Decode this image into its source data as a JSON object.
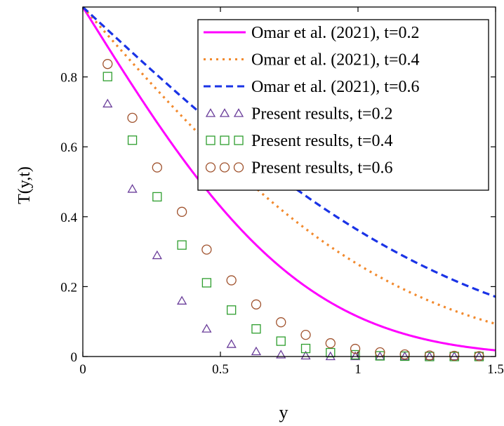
{
  "chart_data": {
    "type": "line",
    "xlabel": "y",
    "ylabel": "T(y,t)",
    "xlim": [
      0,
      1.5
    ],
    "ylim": [
      0,
      1
    ],
    "xticks": [
      0,
      0.5,
      1,
      1.5
    ],
    "xtick_labels": [
      "0",
      "0.5",
      "1",
      "1.5"
    ],
    "yticks": [
      0,
      0.2,
      0.4,
      0.6,
      0.8
    ],
    "ytick_labels": [
      "0",
      "0.2",
      "0.4",
      "0.6",
      "0.8"
    ],
    "grid": false,
    "legend_position": "top-right",
    "series": [
      {
        "name": "Omar et al. (2021), t=0.2",
        "kind": "line",
        "style": "solid",
        "color": "#ff00ff",
        "t": 0.2
      },
      {
        "name": "Omar et al. (2021), t=0.4",
        "kind": "line",
        "style": "dotted",
        "color": "#f28a2e",
        "t": 0.4
      },
      {
        "name": "Omar et al. (2021), t=0.6",
        "kind": "line",
        "style": "dashed",
        "color": "#1a33e6",
        "t": 0.6
      },
      {
        "name": "Present results, t=0.2",
        "kind": "marker",
        "marker": "triangle",
        "color": "#6a3d9a",
        "x": [
          0.09,
          0.18,
          0.27,
          0.36,
          0.45,
          0.54,
          0.63,
          0.72,
          0.81,
          0.9,
          0.99,
          1.08,
          1.17,
          1.26,
          1.35,
          1.44
        ],
        "y": [
          0.723,
          0.479,
          0.289,
          0.159,
          0.079,
          0.035,
          0.014,
          0.005,
          0.002,
          0.0,
          0.0,
          0.0,
          0.0,
          0.0,
          0.0,
          0.0
        ]
      },
      {
        "name": "Present results, t=0.4",
        "kind": "marker",
        "marker": "square",
        "color": "#2e9e2e",
        "x": [
          0.09,
          0.18,
          0.27,
          0.36,
          0.45,
          0.54,
          0.63,
          0.72,
          0.81,
          0.9,
          0.99,
          1.08,
          1.17,
          1.26,
          1.35,
          1.44
        ],
        "y": [
          0.801,
          0.619,
          0.457,
          0.319,
          0.211,
          0.133,
          0.079,
          0.044,
          0.023,
          0.011,
          0.005,
          0.002,
          0.001,
          0.0,
          0.0,
          0.0
        ]
      },
      {
        "name": "Present results, t=0.6",
        "kind": "marker",
        "marker": "circle",
        "color": "#a0522d",
        "x": [
          0.09,
          0.18,
          0.27,
          0.36,
          0.45,
          0.54,
          0.63,
          0.72,
          0.81,
          0.9,
          0.99,
          1.08,
          1.17,
          1.26,
          1.35,
          1.44
        ],
        "y": [
          0.837,
          0.683,
          0.541,
          0.414,
          0.306,
          0.218,
          0.149,
          0.098,
          0.062,
          0.038,
          0.022,
          0.012,
          0.006,
          0.003,
          0.002,
          0.001
        ]
      }
    ]
  }
}
